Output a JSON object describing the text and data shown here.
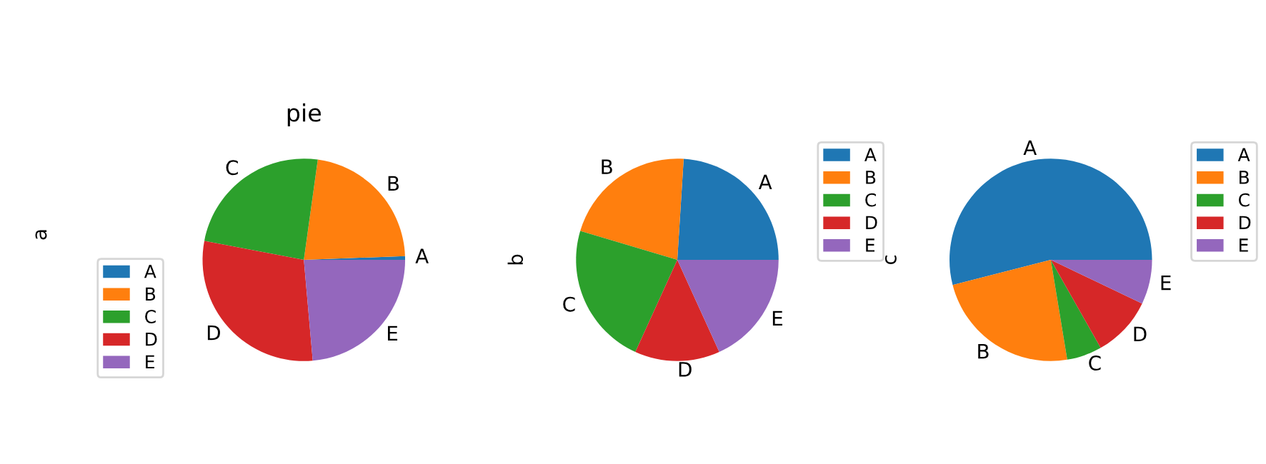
{
  "chart_data": [
    {
      "type": "pie",
      "title": "pie",
      "ylabel": "a",
      "categories": [
        "A",
        "B",
        "C",
        "D",
        "E"
      ],
      "values": [
        0.6,
        22.2,
        24.2,
        29.4,
        23.6
      ],
      "colors": [
        "#1f77b4",
        "#ff7f0e",
        "#2ca02c",
        "#d62728",
        "#9467bd"
      ],
      "legend": "bottom left"
    },
    {
      "type": "pie",
      "ylabel": "b",
      "categories": [
        "A",
        "B",
        "C",
        "D",
        "E"
      ],
      "values": [
        24,
        21.4,
        22.8,
        13.6,
        18.2
      ],
      "colors": [
        "#1f77b4",
        "#ff7f0e",
        "#2ca02c",
        "#d62728",
        "#9467bd"
      ],
      "legend": "top right"
    },
    {
      "type": "pie",
      "ylabel": "c",
      "categories": [
        "A",
        "B",
        "C",
        "D",
        "E"
      ],
      "values": [
        54,
        23.6,
        5.6,
        9.7,
        7.1
      ],
      "colors": [
        "#1f77b4",
        "#ff7f0e",
        "#2ca02c",
        "#d62728",
        "#9467bd"
      ],
      "legend": "top right"
    }
  ]
}
